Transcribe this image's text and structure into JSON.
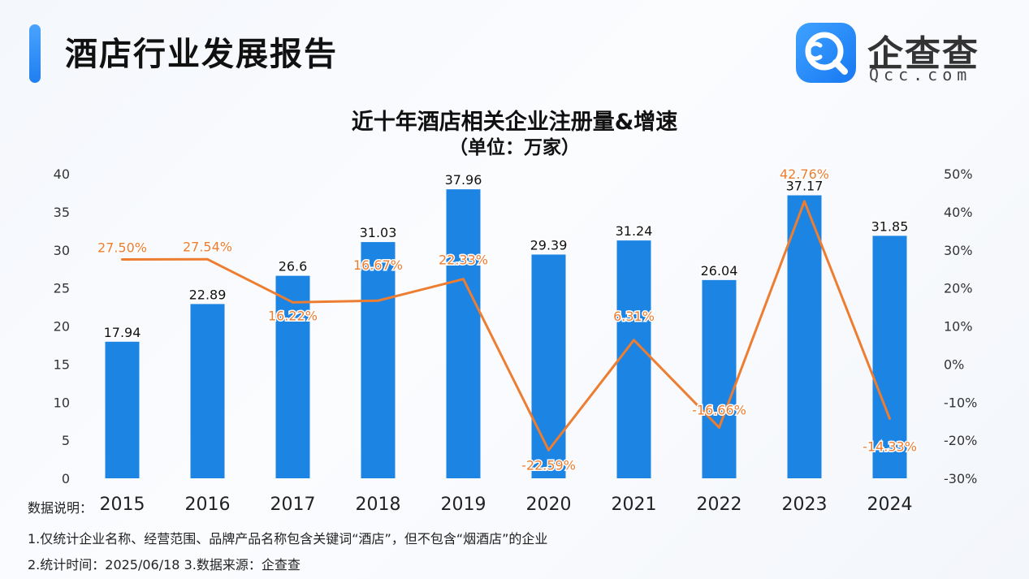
{
  "header": {
    "title": "酒店行业发展报告",
    "logo": {
      "name": "企查查",
      "domain": "Qcc.com",
      "icon": "magnifier-logo-icon"
    }
  },
  "chart_data": {
    "type": "bar",
    "title": "近十年酒店相关企业注册量&增速",
    "subtitle": "（单位：万家）",
    "categories": [
      "2015",
      "2016",
      "2017",
      "2018",
      "2019",
      "2020",
      "2021",
      "2022",
      "2023",
      "2024"
    ],
    "series": [
      {
        "type": "bar",
        "axis": "left",
        "color": "#1c84e3",
        "values": [
          17.94,
          22.89,
          26.6,
          31.03,
          37.96,
          29.39,
          31.24,
          26.04,
          37.17,
          31.85
        ],
        "labels": [
          "17.94",
          "22.89",
          "26.6",
          "31.03",
          "37.96",
          "29.39",
          "31.24",
          "26.04",
          "37.17",
          "31.85"
        ]
      },
      {
        "type": "line",
        "axis": "right",
        "color": "#ed7d31",
        "values": [
          27.5,
          27.54,
          16.22,
          16.67,
          22.33,
          -22.59,
          6.31,
          -16.66,
          42.76,
          -14.33
        ],
        "labels": [
          "27.50%",
          "27.54%",
          "16.22%",
          "16.67%",
          "22.33%",
          "-22.59%",
          "6.31%",
          "-16.66%",
          "42.76%",
          "-14.33%"
        ]
      }
    ],
    "y_left": {
      "min": 0,
      "max": 40,
      "step": 5,
      "ticks": [
        "0",
        "5",
        "10",
        "15",
        "20",
        "25",
        "30",
        "35",
        "40"
      ]
    },
    "y_right": {
      "min": -30,
      "max": 50,
      "step": 10,
      "ticks": [
        "-30%",
        "-20%",
        "-10%",
        "0%",
        "10%",
        "20%",
        "30%",
        "40%",
        "50%"
      ]
    },
    "grid": false,
    "legend": "none"
  },
  "notes": {
    "heading": "数据说明：",
    "line1": "1.仅统计企业名称、经营范围、品牌产品名称包含关键词“酒店”，但不包含“烟酒店”的企业",
    "line2": "2.统计时间：2025/06/18    3.数据来源：企查查"
  }
}
